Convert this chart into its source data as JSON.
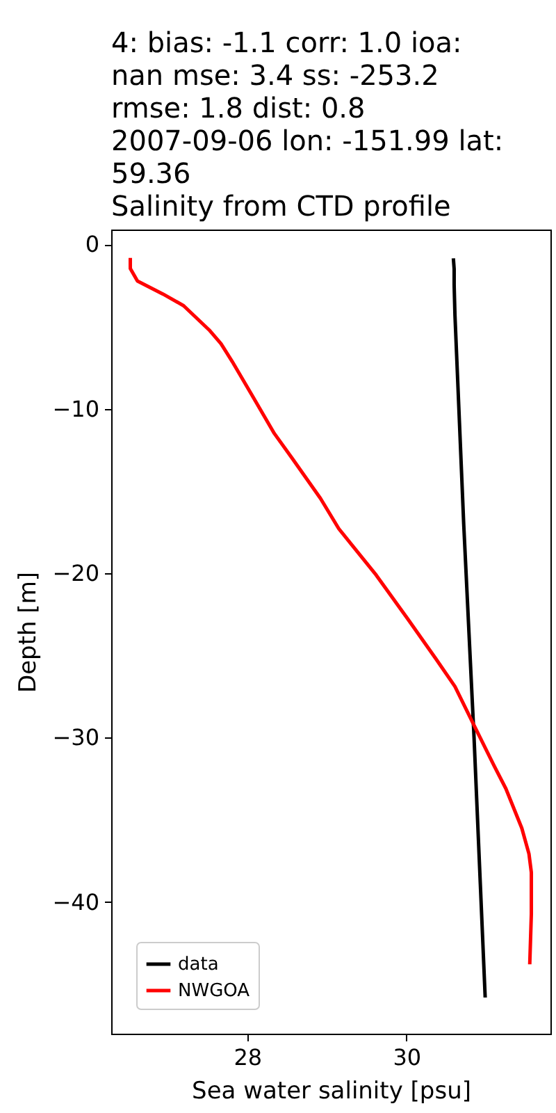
{
  "chart_data": {
    "type": "line",
    "title": "4: bias: -1.1  corr: 1.0  ioa:\nnan  mse: 3.4  ss: -253.2\nrmse: 1.8  dist: 0.8\n2007-09-06 lon: -151.99 lat:\n59.36\nSalinity from CTD profile",
    "xlabel": "Sea water salinity [psu]",
    "ylabel": "Depth [m]",
    "xlim": [
      26.29,
      31.81
    ],
    "xticks": [
      28,
      30
    ],
    "ylim": [
      -48.0,
      0.9
    ],
    "yticks": [
      -40,
      -30,
      -20,
      -10,
      0
    ],
    "grid": false,
    "legend": "bottom left",
    "marker": "none",
    "line_style": "solid",
    "series": [
      {
        "name": "data",
        "color": "#000000",
        "x": [
          30.59,
          30.6,
          30.6,
          30.61,
          30.72,
          30.85,
          30.99
        ],
        "values": [
          -0.85,
          -1.5,
          -2.5,
          -4.3,
          -17.0,
          -30.0,
          -45.8
        ]
      },
      {
        "name": "NWGOA",
        "color": "#ff0000",
        "x": [
          26.53,
          26.53,
          26.62,
          26.94,
          27.2,
          27.52,
          27.67,
          27.81,
          28.05,
          28.34,
          28.57,
          28.92,
          29.15,
          29.62,
          30.02,
          30.37,
          30.61,
          30.84,
          31.1,
          31.25,
          31.45,
          31.54,
          31.57,
          31.57,
          31.55
        ],
        "values": [
          -0.82,
          -1.47,
          -2.23,
          -3.02,
          -3.73,
          -5.2,
          -6.04,
          -7.12,
          -9.09,
          -11.5,
          -13.05,
          -15.45,
          -17.29,
          -20.11,
          -22.8,
          -25.2,
          -26.89,
          -29.15,
          -31.69,
          -33.1,
          -35.5,
          -37.06,
          -38.19,
          -40.73,
          -43.78
        ]
      }
    ]
  }
}
